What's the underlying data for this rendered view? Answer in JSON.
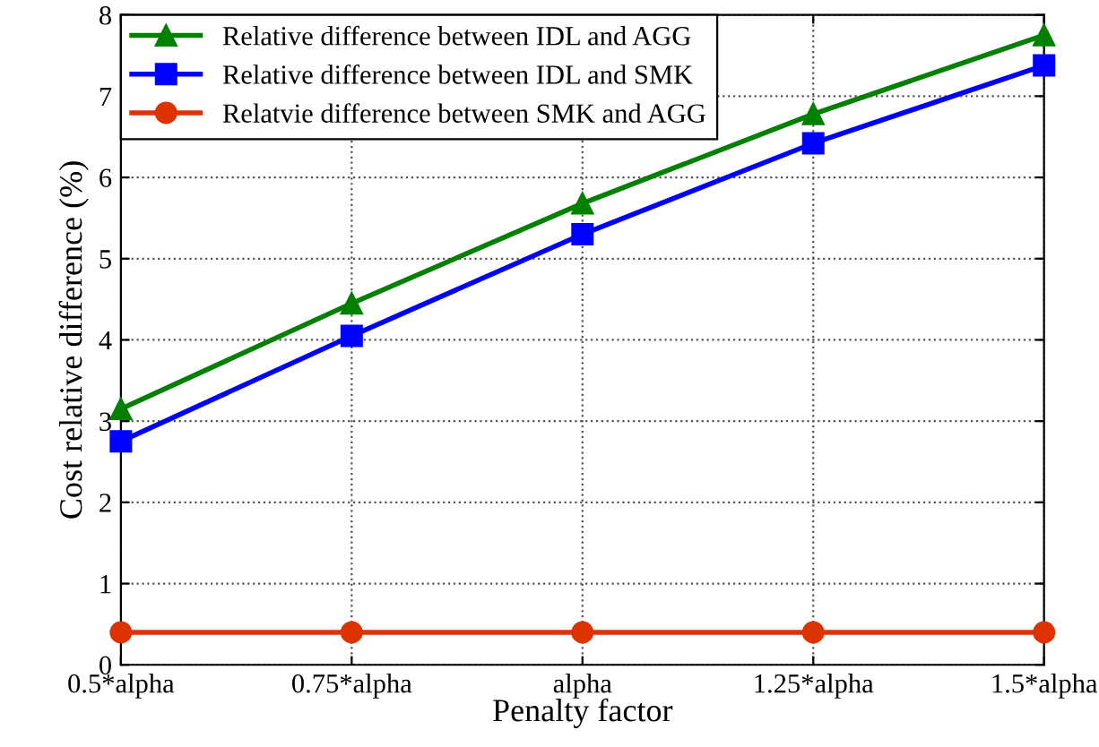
{
  "chart_data": {
    "type": "line",
    "xlabel": "Penalty factor",
    "ylabel": "Cost relative difference (%)",
    "categories": [
      "0.5*alpha",
      "0.75*alpha",
      "alpha",
      "1.25*alpha",
      "1.5*alpha"
    ],
    "series": [
      {
        "name": "Relative difference between IDL and AGG",
        "color": "#008000",
        "marker": "triangle",
        "values": [
          3.15,
          4.45,
          5.68,
          6.78,
          7.75
        ]
      },
      {
        "name": "Relative difference between IDL and SMK",
        "color": "#0000ff",
        "marker": "square",
        "values": [
          2.75,
          4.05,
          5.3,
          6.42,
          7.38
        ]
      },
      {
        "name": "Relatvie difference between SMK and AGG",
        "color": "#dd3300",
        "marker": "circle",
        "values": [
          0.4,
          0.4,
          0.4,
          0.4,
          0.4
        ]
      }
    ],
    "ylim": [
      0,
      8
    ],
    "yticks": [
      0,
      1,
      2,
      3,
      4,
      5,
      6,
      7,
      8
    ],
    "grid": true,
    "legend": "top left",
    "line_style": "solid"
  }
}
